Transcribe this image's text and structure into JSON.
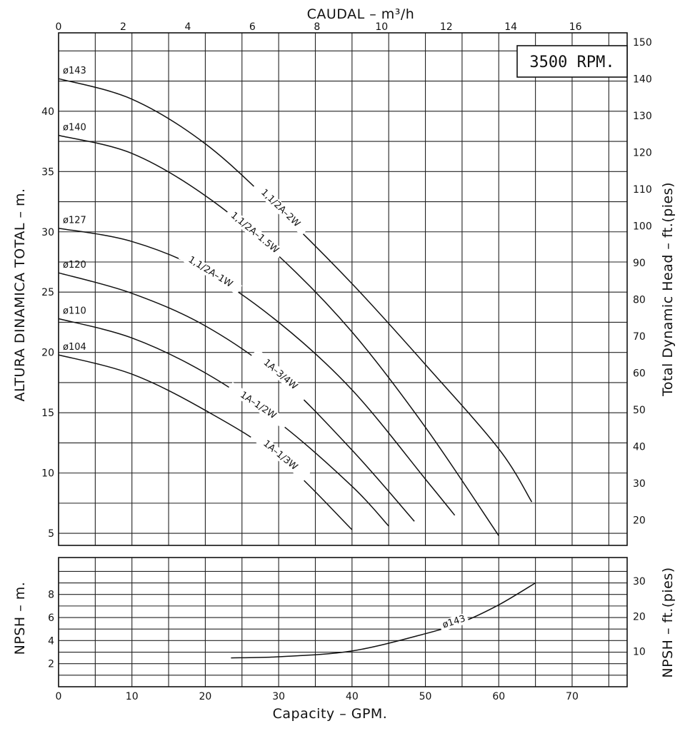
{
  "chart_data": [
    {
      "type": "line",
      "name": "head-chart",
      "top_axis": {
        "label": "CAUDAL  – m³/h",
        "range": [
          0,
          17.6
        ],
        "ticks": [
          0,
          2,
          4,
          6,
          8,
          10,
          12,
          14,
          16
        ]
      },
      "x_axis": {
        "label": "Capacity – GPM.",
        "range": [
          0,
          77.5
        ]
      },
      "left_axis": {
        "label": "ALTURA DINAMICA TOTAL  –  m.",
        "range": [
          4,
          46.5
        ],
        "ticks": [
          5,
          10,
          15,
          20,
          25,
          30,
          35,
          40
        ]
      },
      "right_axis": {
        "label": "Total Dynamic Head  –  ft.(pies)",
        "ticks": [
          20,
          30,
          40,
          50,
          60,
          70,
          80,
          90,
          100,
          110,
          120,
          130,
          140,
          150
        ]
      },
      "annotation": "3500  RPM.",
      "grid": true,
      "series": [
        {
          "name": "1,1/2A–2W",
          "diameter": "ø143",
          "points": [
            [
              0,
              42.7
            ],
            [
              10,
              41.0
            ],
            [
              20,
              37.3
            ],
            [
              30,
              31.8
            ],
            [
              40,
              25.7
            ],
            [
              50,
              19.0
            ],
            [
              60,
              12.0
            ],
            [
              64.5,
              7.6
            ]
          ]
        },
        {
          "name": "1,1/2A–1.5W",
          "diameter": "ø140",
          "points": [
            [
              0,
              38.0
            ],
            [
              10,
              36.5
            ],
            [
              20,
              33.0
            ],
            [
              30,
              28.0
            ],
            [
              40,
              21.7
            ],
            [
              50,
              13.8
            ],
            [
              60,
              4.8
            ]
          ]
        },
        {
          "name": "1,1/2A–1W",
          "diameter": "ø127",
          "points": [
            [
              0,
              30.3
            ],
            [
              10,
              29.2
            ],
            [
              20,
              26.7
            ],
            [
              30,
              22.5
            ],
            [
              40,
              16.9
            ],
            [
              50,
              9.5
            ],
            [
              54,
              6.5
            ]
          ]
        },
        {
          "name": "1A–3/4W",
          "diameter": "ø120",
          "points": [
            [
              0,
              26.6
            ],
            [
              10,
              24.9
            ],
            [
              20,
              22.2
            ],
            [
              30,
              18.0
            ],
            [
              40,
              11.9
            ],
            [
              48.5,
              6.0
            ]
          ]
        },
        {
          "name": "1A–1/2W",
          "diameter": "ø110",
          "points": [
            [
              0,
              22.8
            ],
            [
              10,
              21.2
            ],
            [
              20,
              18.3
            ],
            [
              30,
              14.2
            ],
            [
              40,
              8.9
            ],
            [
              45,
              5.6
            ]
          ]
        },
        {
          "name": "1A–1/3W",
          "diameter": "ø104",
          "points": [
            [
              0,
              19.8
            ],
            [
              10,
              18.2
            ],
            [
              20,
              15.2
            ],
            [
              30,
              11.3
            ],
            [
              40,
              5.3
            ]
          ]
        }
      ]
    },
    {
      "type": "line",
      "name": "npsh-chart",
      "x_axis": {
        "label": "Capacity – GPM.",
        "range": [
          0,
          77.5
        ],
        "ticks": [
          0,
          10,
          20,
          30,
          40,
          50,
          60,
          70
        ]
      },
      "left_axis": {
        "label": "NPSH  –  m.",
        "range": [
          0,
          11.2
        ],
        "ticks": [
          2,
          4,
          6,
          8
        ]
      },
      "right_axis": {
        "label": "NPSH  –  ft.(pies)",
        "ticks": [
          10,
          20,
          30
        ]
      },
      "grid": true,
      "series": [
        {
          "name": "ø143",
          "points": [
            [
              23.5,
              2.5
            ],
            [
              30,
              2.6
            ],
            [
              40,
              3.1
            ],
            [
              50,
              4.6
            ],
            [
              55,
              5.6
            ],
            [
              60,
              7.1
            ],
            [
              65,
              9.0
            ]
          ]
        }
      ]
    }
  ]
}
